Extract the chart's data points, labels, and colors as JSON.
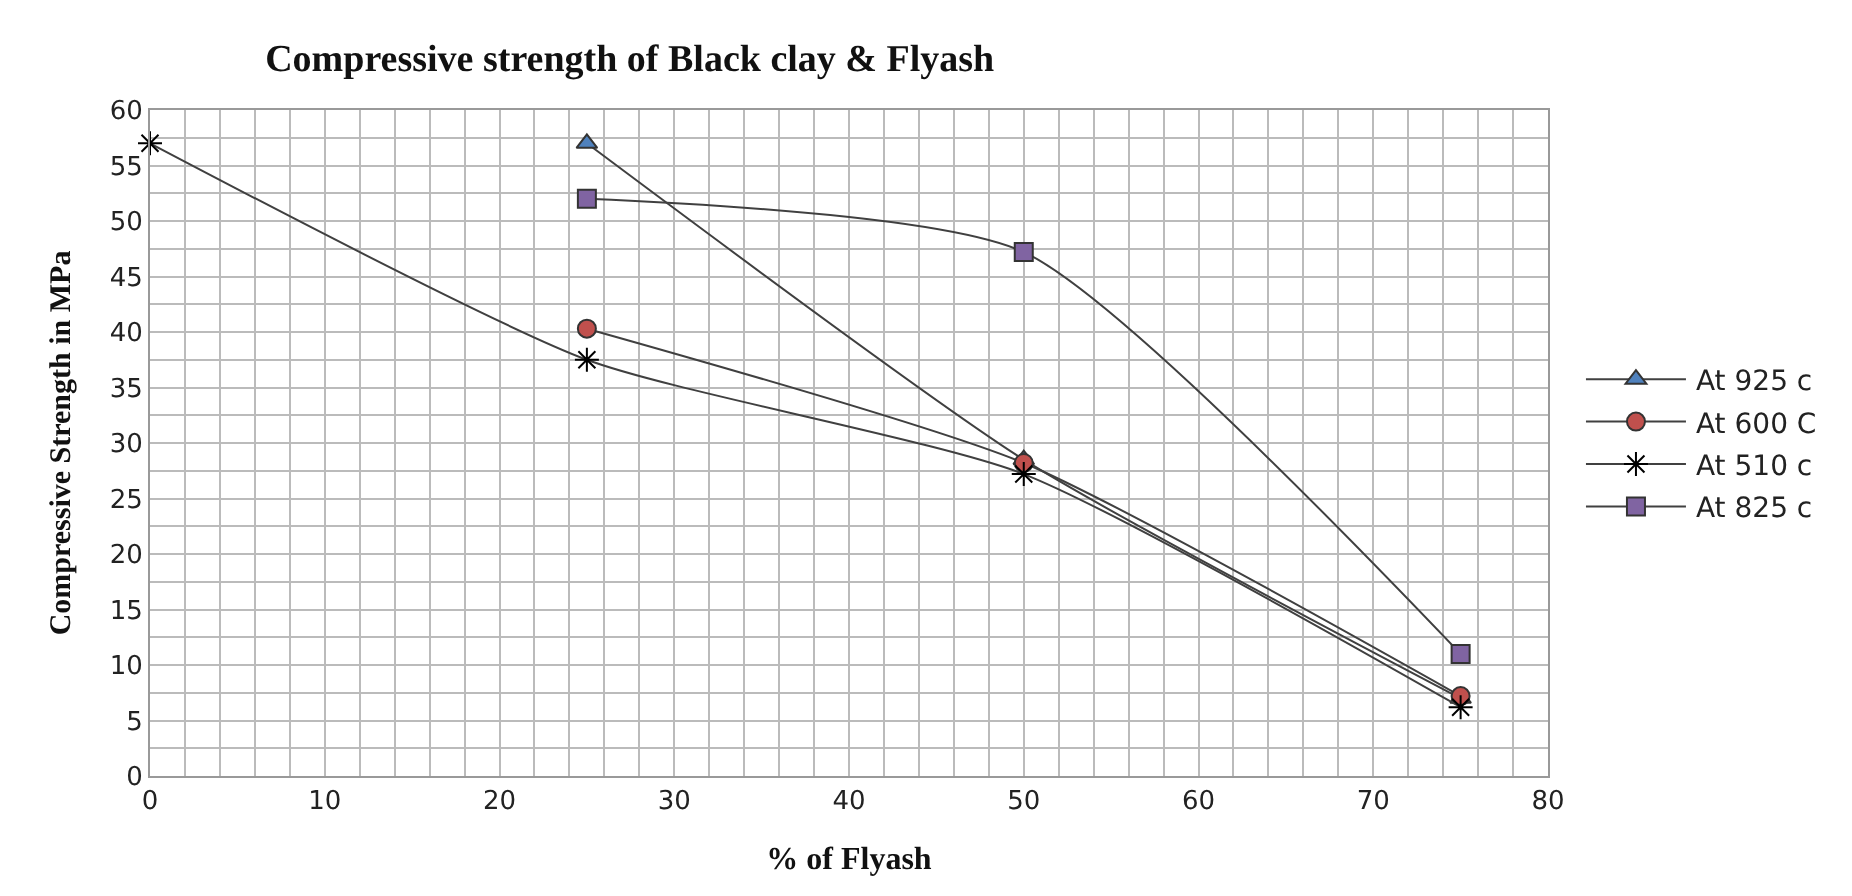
{
  "chart_data": {
    "type": "line",
    "title": "Compressive strength of Black clay & Flyash",
    "xlabel": "% of Flyash",
    "ylabel": "Compressive Strength in MPa",
    "series": [
      {
        "name": "At 925 c",
        "color": "#4f81bd",
        "marker": "triangle",
        "x": [
          25,
          50,
          75
        ],
        "values": [
          57,
          28.5,
          7
        ]
      },
      {
        "name": "At 600 C",
        "color": "#c0504d",
        "marker": "circle",
        "x": [
          25,
          50,
          75
        ],
        "values": [
          40.3,
          28.2,
          7.2
        ]
      },
      {
        "name": "At 510 c",
        "color": "#000000",
        "marker": "cross",
        "x": [
          0,
          25,
          50,
          75
        ],
        "values": [
          57,
          37.5,
          27.2,
          6.2
        ]
      },
      {
        "name": "At 825 c",
        "color": "#8064a2",
        "marker": "square",
        "x": [
          25,
          50,
          75
        ],
        "values": [
          52,
          47.2,
          11
        ]
      }
    ],
    "xlim": [
      0,
      80
    ],
    "xticks": [
      0,
      10,
      20,
      30,
      40,
      50,
      60,
      70,
      80
    ],
    "ylim": [
      0,
      60
    ],
    "yticks": [
      0,
      5,
      10,
      15,
      20,
      25,
      30,
      35,
      40,
      45,
      50,
      55,
      60
    ],
    "grid": true,
    "legend": "right"
  }
}
